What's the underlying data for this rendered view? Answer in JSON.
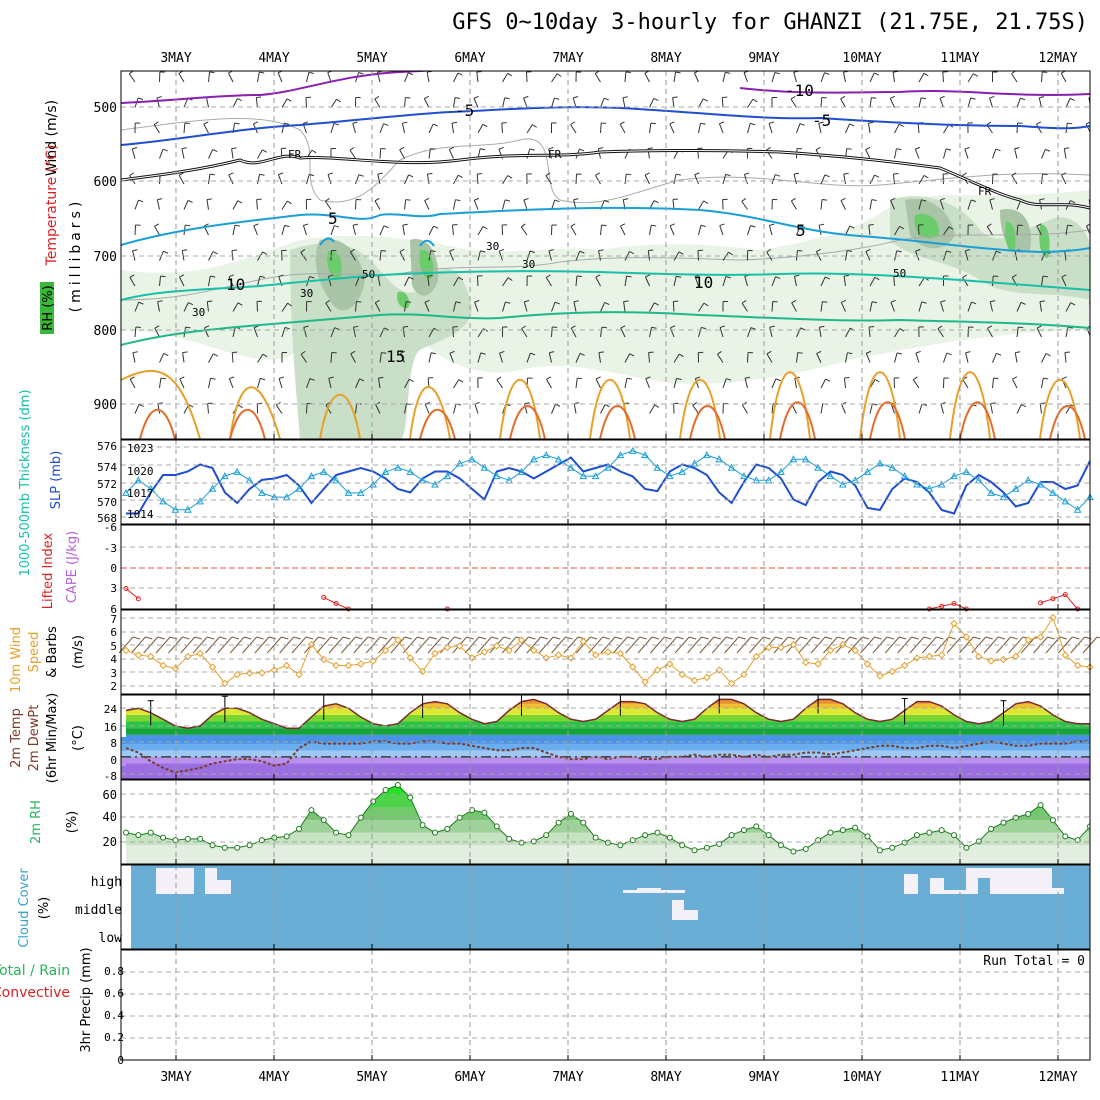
{
  "title": "GFS 0~10day 3-hourly for GHANZI (21.75E, 21.75S)",
  "date_labels": [
    "3MAY",
    "4MAY",
    "5MAY",
    "6MAY",
    "7MAY",
    "8MAY",
    "9MAY",
    "10MAY",
    "11MAY",
    "12MAY"
  ],
  "colors": {
    "frame": "#000000",
    "grid": "#a0a0a0",
    "purple": "#8a1fb0",
    "blue": "#1f4fd0",
    "cyan": "#1a9fd8",
    "teal": "#17c0a8",
    "green": "#27b45a",
    "orange": "#e8a02a",
    "red": "#dd2222",
    "cloud_bg": "#6aaed6",
    "cloud_fill": "#f4f0f8"
  },
  "panels": {
    "upper": {
      "ylabel_wind": "Wind (m/s)",
      "ylabel_temp": "Temperature (°C)",
      "ylabel_rh": "RH (%)",
      "ylabel_mb": "(millibars)",
      "ticks": [
        "500",
        "600",
        "700",
        "800",
        "900"
      ],
      "contour_labels": [
        "-10",
        "-5",
        "-5",
        "FR",
        "FR",
        "FR",
        "5",
        "5",
        "10",
        "10",
        "15",
        "30",
        "30",
        "30",
        "30",
        "50",
        "50"
      ]
    },
    "slp": {
      "ylabel_thick": "1000-500mb Thickness (dm)",
      "ylabel_slp": "SLP (mb)",
      "ticks_left": [
        "576",
        "574",
        "572",
        "570",
        "568"
      ],
      "ticks_right": [
        "1023",
        "1020",
        "1017",
        "1014"
      ]
    },
    "cape": {
      "ylabel_li": "Lifted Index",
      "ylabel_cape": "CAPE (J/kg)",
      "ticks": [
        "-6",
        "-3",
        "0",
        "3",
        "6"
      ]
    },
    "wind10": {
      "ylabel_a": "10m Wind",
      "ylabel_b": "Speed",
      "ylabel_c": "& Barbs",
      "ylabel_unit": "(m/s)",
      "ticks": [
        "7",
        "6",
        "5",
        "4",
        "3",
        "2"
      ]
    },
    "temp2m": {
      "ylabel_a": "2m Temp",
      "ylabel_b": "2m DewPt",
      "ylabel_c": "(6hr Min/Max)",
      "ylabel_unit": "(°C)",
      "ticks": [
        "24",
        "16",
        "8",
        "0",
        "-8"
      ]
    },
    "rh2m": {
      "ylabel": "2m RH",
      "ylabel_unit": "(%)",
      "ticks": [
        "60",
        "40",
        "20"
      ]
    },
    "cloud": {
      "ylabel": "Cloud Cover",
      "ylabel_unit": "(%)",
      "levels": [
        "high",
        "middle",
        "low"
      ]
    },
    "precip": {
      "ylabel_a": "Total / Rain",
      "ylabel_b": "Convective",
      "ylabel_c": "3hr Precip (mm)",
      "ticks": [
        "0.8",
        "0.6",
        "0.4",
        "0.2",
        "0"
      ],
      "run_total": "Run Total = 0"
    }
  },
  "chart_data": [
    {
      "type": "line",
      "panel": "slp",
      "x": [
        0,
        1,
        2,
        3,
        4,
        5,
        6,
        7,
        8,
        9,
        10,
        11,
        12,
        13,
        14,
        15,
        16,
        17,
        18,
        19,
        20,
        21,
        22,
        23,
        24,
        25,
        26,
        27,
        28,
        29,
        30,
        31,
        32,
        33,
        34,
        35,
        36,
        37,
        38,
        39,
        40,
        41,
        42,
        43,
        44,
        45,
        46,
        47,
        48,
        49,
        50,
        51,
        52,
        53,
        54,
        55,
        56,
        57,
        58,
        59,
        60,
        61,
        62,
        63,
        64,
        65,
        66,
        67,
        68,
        69,
        70,
        71,
        72,
        73,
        74,
        75,
        76,
        77,
        78
      ],
      "series": [
        {
          "name": "SLP (mb)",
          "values": [
            1014,
            1014,
            1017,
            1019.5,
            1019.5,
            1020,
            1021,
            1020.5,
            1017,
            1015.5,
            1017.5,
            1018.8,
            1019,
            1019.5,
            1018,
            1015.5,
            1017.5,
            1019.5,
            1020,
            1020.5,
            1020,
            1019,
            1017.5,
            1017,
            1019,
            1020,
            1020,
            1019,
            1017.5,
            1016,
            1020,
            1020.5,
            1020,
            1019,
            1020,
            1021,
            1022,
            1020,
            1020.5,
            1021,
            1020,
            1019.3,
            1017.5,
            1017.2,
            1020,
            1021,
            1020.5,
            1019.5,
            1017,
            1015.5,
            1018.5,
            1021,
            1020.5,
            1019,
            1016,
            1015.2,
            1018.5,
            1020,
            1019.5,
            1018,
            1014.8,
            1014.5,
            1017.5,
            1019,
            1018.5,
            1017,
            1014.5,
            1014,
            1018,
            1019.5,
            1018.5,
            1017,
            1015,
            1015.5,
            1018.5,
            1018.5,
            1017.5,
            1018,
            1021.5
          ]
        },
        {
          "name": "1000-500mb Thickness (dm)",
          "values": [
            571,
            572.5,
            571.5,
            570,
            569,
            569,
            570,
            571.5,
            573,
            573.5,
            572.5,
            571,
            570.5,
            570.5,
            571.5,
            573,
            573.5,
            572.5,
            571,
            571,
            572,
            573.5,
            574,
            573.5,
            572.5,
            572,
            573,
            574.5,
            575,
            574,
            573,
            572.5,
            573.5,
            575,
            575.5,
            575,
            574,
            573,
            573,
            574,
            575.5,
            576,
            575.5,
            574,
            573,
            573.5,
            574.5,
            575.5,
            575,
            574,
            573,
            572.5,
            572.5,
            573.5,
            575,
            575,
            574,
            573,
            572,
            572.5,
            573.5,
            574.5,
            574,
            573,
            572,
            571.5,
            572,
            573,
            573.5,
            572.5,
            571,
            570.5,
            571.5,
            572.5,
            572,
            571,
            570,
            569,
            570.5
          ]
        }
      ]
    },
    {
      "type": "line",
      "panel": "wind10",
      "x": [
        0,
        1,
        2,
        3,
        4,
        5,
        6,
        7,
        8,
        9,
        10,
        11,
        12,
        13,
        14,
        15,
        16,
        17,
        18,
        19,
        20,
        21,
        22,
        23,
        24,
        25,
        26,
        27,
        28,
        29,
        30,
        31,
        32,
        33,
        34,
        35,
        36,
        37,
        38,
        39,
        40,
        41,
        42,
        43,
        44,
        45,
        46,
        47,
        48,
        49,
        50,
        51,
        52,
        53,
        54,
        55,
        56,
        57,
        58,
        59,
        60,
        61,
        62,
        63,
        64,
        65,
        66,
        67,
        68,
        69,
        70,
        71,
        72,
        73,
        74,
        75,
        76,
        77,
        78
      ],
      "series": [
        {
          "name": "10m Wind Speed (m/s)",
          "values": [
            4.6,
            4.3,
            4.2,
            3.6,
            3.4,
            4.2,
            4.4,
            3.5,
            2.4,
            3,
            3.1,
            3.1,
            3.3,
            3.6,
            3,
            5,
            4,
            3.6,
            3.6,
            3.7,
            3.9,
            4.6,
            5.3,
            4.1,
            3.2,
            4.4,
            4.8,
            4.9,
            4.1,
            4.5,
            4.9,
            4.6,
            5.3,
            4.6,
            4.1,
            4.3,
            4.1,
            5.2,
            4.3,
            4.5,
            4.4,
            3.5,
            2.5,
            3.3,
            3.7,
            3,
            2.6,
            2.8,
            3.3,
            2.4,
            3,
            4.2,
            4.8,
            4.8,
            5,
            3.8,
            3.7,
            4.6,
            5,
            4.6,
            3.7,
            2.9,
            3.2,
            3.6,
            4.1,
            4.2,
            4.3,
            6.4,
            5.5,
            4.2,
            3.9,
            4,
            4.2,
            5.3,
            5.5,
            6.8,
            4.3,
            3.6,
            3.5
          ]
        }
      ]
    },
    {
      "type": "area",
      "panel": "temp2m",
      "x": [
        0,
        1,
        2,
        3,
        4,
        5,
        6,
        7,
        8,
        9,
        10,
        11,
        12,
        13,
        14,
        15,
        16,
        17,
        18,
        19,
        20,
        21,
        22,
        23,
        24,
        25,
        26,
        27,
        28,
        29,
        30,
        31,
        32,
        33,
        34,
        35,
        36,
        37,
        38,
        39,
        40,
        41,
        42,
        43,
        44,
        45,
        46,
        47,
        48,
        49,
        50,
        51,
        52,
        53,
        54,
        55,
        56,
        57,
        58,
        59,
        60,
        61,
        62,
        63,
        64,
        65,
        66,
        67,
        68,
        69,
        70,
        71,
        72,
        73,
        74,
        75,
        76,
        77,
        78
      ],
      "series": [
        {
          "name": "2m Temp (°C)",
          "values": [
            21,
            22,
            20,
            17,
            14,
            13,
            14,
            19,
            22,
            22,
            20,
            17,
            15,
            13,
            13,
            18,
            23,
            24,
            22,
            18,
            15,
            14,
            15,
            20,
            24,
            25,
            24,
            20,
            17,
            15,
            16,
            21,
            25,
            26,
            24,
            20,
            17,
            16,
            17,
            21,
            25,
            25,
            24,
            20,
            17,
            16,
            17,
            22,
            26,
            26,
            24,
            20,
            17,
            16,
            17,
            22,
            26,
            26,
            24,
            20,
            17,
            16,
            17,
            21,
            25,
            25,
            23,
            19,
            16,
            15,
            16,
            20,
            24,
            25,
            23,
            19,
            16,
            15,
            15
          ]
        },
        {
          "name": "2m DewPt (°C)",
          "values": [
            4,
            2,
            -2,
            -5,
            -7,
            -6,
            -5,
            -3,
            -2,
            -1,
            -1,
            -2,
            -4,
            -3,
            4,
            7,
            6,
            6,
            6,
            6,
            7,
            7,
            6,
            6,
            7,
            7,
            6,
            6,
            5,
            4,
            3,
            3,
            4,
            4,
            2,
            0,
            -1,
            -1,
            0,
            -1,
            0,
            0,
            -1,
            -1,
            0,
            0,
            1,
            0,
            1,
            1,
            0,
            1,
            0,
            1,
            1,
            2,
            2,
            1,
            2,
            3,
            4,
            5,
            5,
            4,
            4,
            5,
            5,
            4,
            5,
            6,
            7,
            6,
            5,
            5,
            6,
            6,
            6,
            7,
            7
          ]
        }
      ]
    },
    {
      "type": "area",
      "panel": "rh2m",
      "x": [
        0,
        1,
        2,
        3,
        4,
        5,
        6,
        7,
        8,
        9,
        10,
        11,
        12,
        13,
        14,
        15,
        16,
        17,
        18,
        19,
        20,
        21,
        22,
        23,
        24,
        25,
        26,
        27,
        28,
        29,
        30,
        31,
        32,
        33,
        34,
        35,
        36,
        37,
        38,
        39,
        40,
        41,
        42,
        43,
        44,
        45,
        46,
        47,
        48,
        49,
        50,
        51,
        52,
        53,
        54,
        55,
        56,
        57,
        58,
        59,
        60,
        61,
        62,
        63,
        64,
        65,
        66,
        67,
        68,
        69,
        70,
        71,
        72,
        73,
        74,
        75,
        76,
        77,
        78
      ],
      "series": [
        {
          "name": "2m RH (%)",
          "values": [
            30,
            28,
            30,
            26,
            24,
            25,
            25,
            20,
            18,
            18,
            20,
            24,
            26,
            27,
            33,
            48,
            40,
            30,
            28,
            42,
            55,
            64,
            68,
            58,
            36,
            30,
            33,
            42,
            48,
            46,
            35,
            25,
            22,
            23,
            28,
            38,
            45,
            38,
            26,
            22,
            20,
            24,
            28,
            30,
            26,
            20,
            16,
            18,
            21,
            28,
            32,
            35,
            28,
            20,
            15,
            17,
            24,
            30,
            32,
            34,
            27,
            16,
            18,
            22,
            28,
            30,
            32,
            28,
            18,
            23,
            33,
            38,
            42,
            45,
            52,
            40,
            27,
            24,
            35
          ]
        }
      ]
    },
    {
      "type": "line",
      "panel": "cape",
      "x": [
        0,
        1,
        2,
        3,
        4,
        5,
        6,
        7,
        8,
        9,
        10,
        11,
        12,
        13,
        14,
        15,
        16,
        17,
        18,
        19,
        20,
        21,
        22,
        23,
        24,
        25,
        26,
        27,
        28,
        29,
        30,
        31,
        32,
        33,
        34,
        35,
        36,
        37,
        38,
        39,
        40,
        41,
        42,
        43,
        44,
        45,
        46,
        47,
        48,
        49,
        50,
        51,
        52,
        53,
        54,
        55,
        56,
        57,
        58,
        59,
        60,
        61,
        62,
        63,
        64,
        65,
        66,
        67,
        68,
        69,
        70,
        71,
        72,
        73,
        74,
        75,
        76,
        77,
        78
      ],
      "series": [
        {
          "name": "Lifted Index",
          "values": [
            3,
            4.5,
            null,
            null,
            null,
            null,
            null,
            null,
            null,
            null,
            null,
            null,
            null,
            null,
            null,
            null,
            4.3,
            5.2,
            6,
            null,
            null,
            null,
            null,
            null,
            null,
            null,
            6,
            null,
            null,
            null,
            null,
            null,
            null,
            null,
            null,
            null,
            null,
            null,
            null,
            null,
            null,
            null,
            null,
            null,
            null,
            null,
            null,
            null,
            null,
            null,
            null,
            null,
            null,
            null,
            null,
            null,
            null,
            null,
            null,
            null,
            null,
            null,
            null,
            null,
            null,
            6,
            5.6,
            5.2,
            6,
            null,
            null,
            null,
            null,
            null,
            5.1,
            4.5,
            3.9,
            6,
            null
          ]
        }
      ]
    },
    {
      "type": "heatmap",
      "panel": "cloud",
      "series": [
        {
          "name": "high cloud",
          "values": "present 3MAY-4MAY, small 7MAY-8MAY, present 10MAY-12MAY"
        },
        {
          "name": "middle cloud",
          "values": "small near 8MAY"
        }
      ]
    },
    {
      "type": "bar",
      "panel": "precip",
      "ylim": [
        0,
        0.9
      ],
      "values": []
    }
  ]
}
